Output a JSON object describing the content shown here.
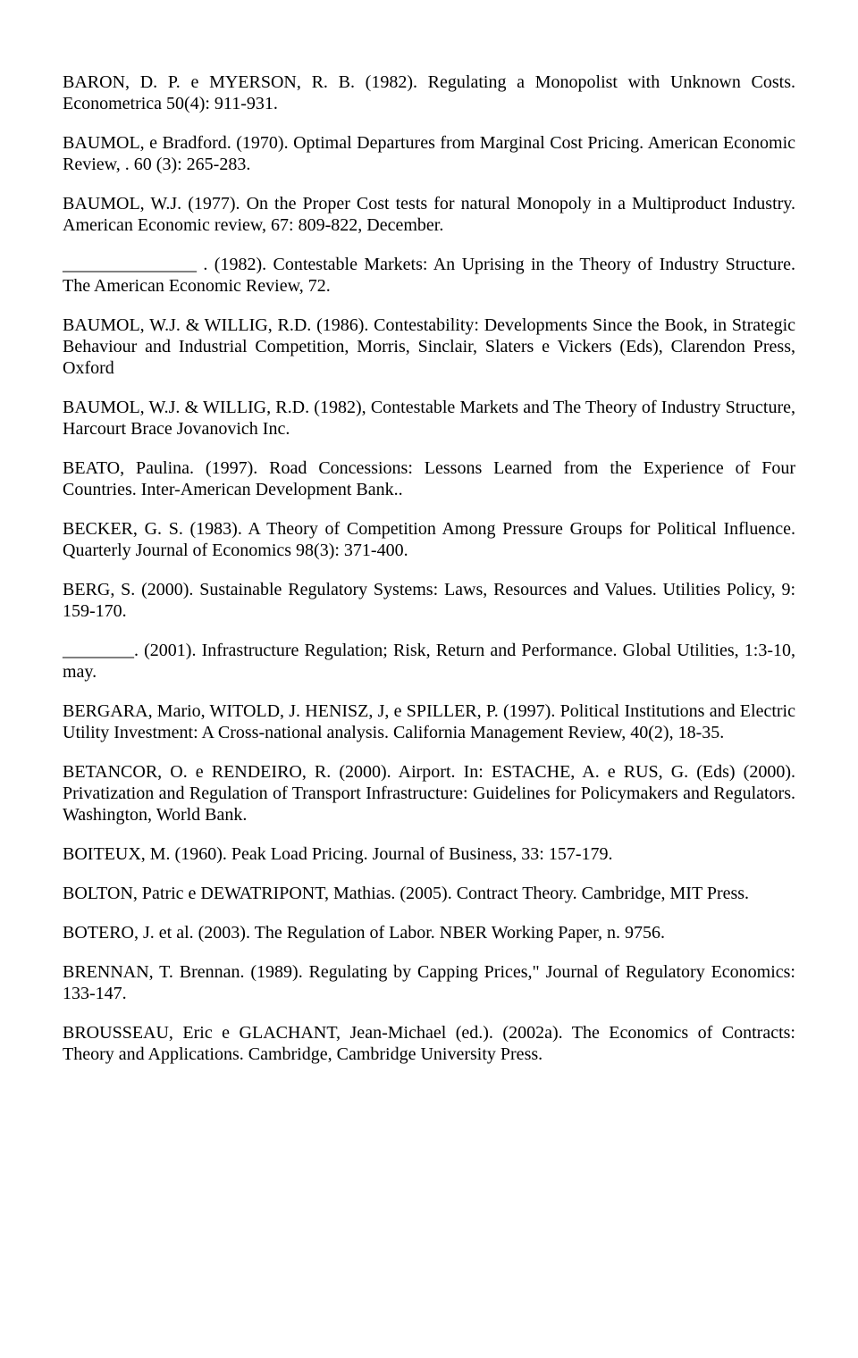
{
  "references": [
    "BARON, D. P. e MYERSON, R. B. (1982). Regulating a Monopolist with Unknown Costs. Econometrica 50(4): 911-931.",
    "BAUMOL, e  Bradford. (1970). Optimal Departures from Marginal Cost Pricing. American Economic Review, . 60 (3): 265-283.",
    "BAUMOL, W.J. (1977).  On the Proper Cost tests for natural Monopoly in a Multiproduct Industry. American Economic review, 67: 809-822, December.",
    "_______________ . (1982). Contestable Markets: An Uprising in the Theory of Industry Structure. The American Economic Review, 72.",
    "BAUMOL, W.J. & WILLIG, R.D. (1986). Contestability: Developments Since the Book, in Strategic Behaviour and Industrial Competition, Morris, Sinclair, Slaters e Vickers (Eds), Clarendon Press, Oxford",
    "BAUMOL, W.J. & WILLIG, R.D. (1982), Contestable Markets and The Theory of Industry Structure, Harcourt Brace Jovanovich Inc.",
    "BEATO, Paulina. (1997).  Road Concessions: Lessons Learned from the Experience of Four Countries. Inter-American Development Bank..",
    "BECKER, G. S. (1983). A Theory of Competition Among Pressure Groups for Political Influence. Quarterly Journal of Economics 98(3): 371-400.",
    "BERG, S. (2000).  Sustainable Regulatory Systems: Laws, Resources and Values. Utilities Policy, 9: 159-170.",
    "________. (2001). Infrastructure Regulation; Risk, Return and Performance. Global Utilities, 1:3-10, may.",
    "BERGARA, Mario, WITOLD, J. HENISZ, J, e SPILLER, P. (1997). Political Institutions and Electric Utility Investment: A Cross-national analysis.  California Management Review,  40(2), 18-35.",
    "BETANCOR, O. e RENDEIRO, R. (2000). Airport. In: ESTACHE, A. e RUS, G. (Eds) (2000).  Privatization and Regulation of Transport Infrastructure: Guidelines for Policymakers and Regulators. Washington, World Bank.",
    "BOITEUX, M. (1960).  Peak Load Pricing. Journal of Business, 33: 157-179.",
    "BOLTON, Patric e DEWATRIPONT, Mathias. (2005). Contract Theory. Cambridge, MIT Press.",
    "BOTERO, J. et al. (2003).  The Regulation of Labor. NBER Working Paper, n. 9756.",
    "BRENNAN, T. Brennan. (1989). Regulating by Capping Prices,\" Journal of Regulatory Economics: 133-147.",
    "BROUSSEAU, Eric e GLACHANT, Jean-Michael (ed.). (2002a). The Economics of Contracts: Theory and Applications. Cambridge, Cambridge University Press."
  ],
  "tight": [
    5,
    6,
    14
  ]
}
